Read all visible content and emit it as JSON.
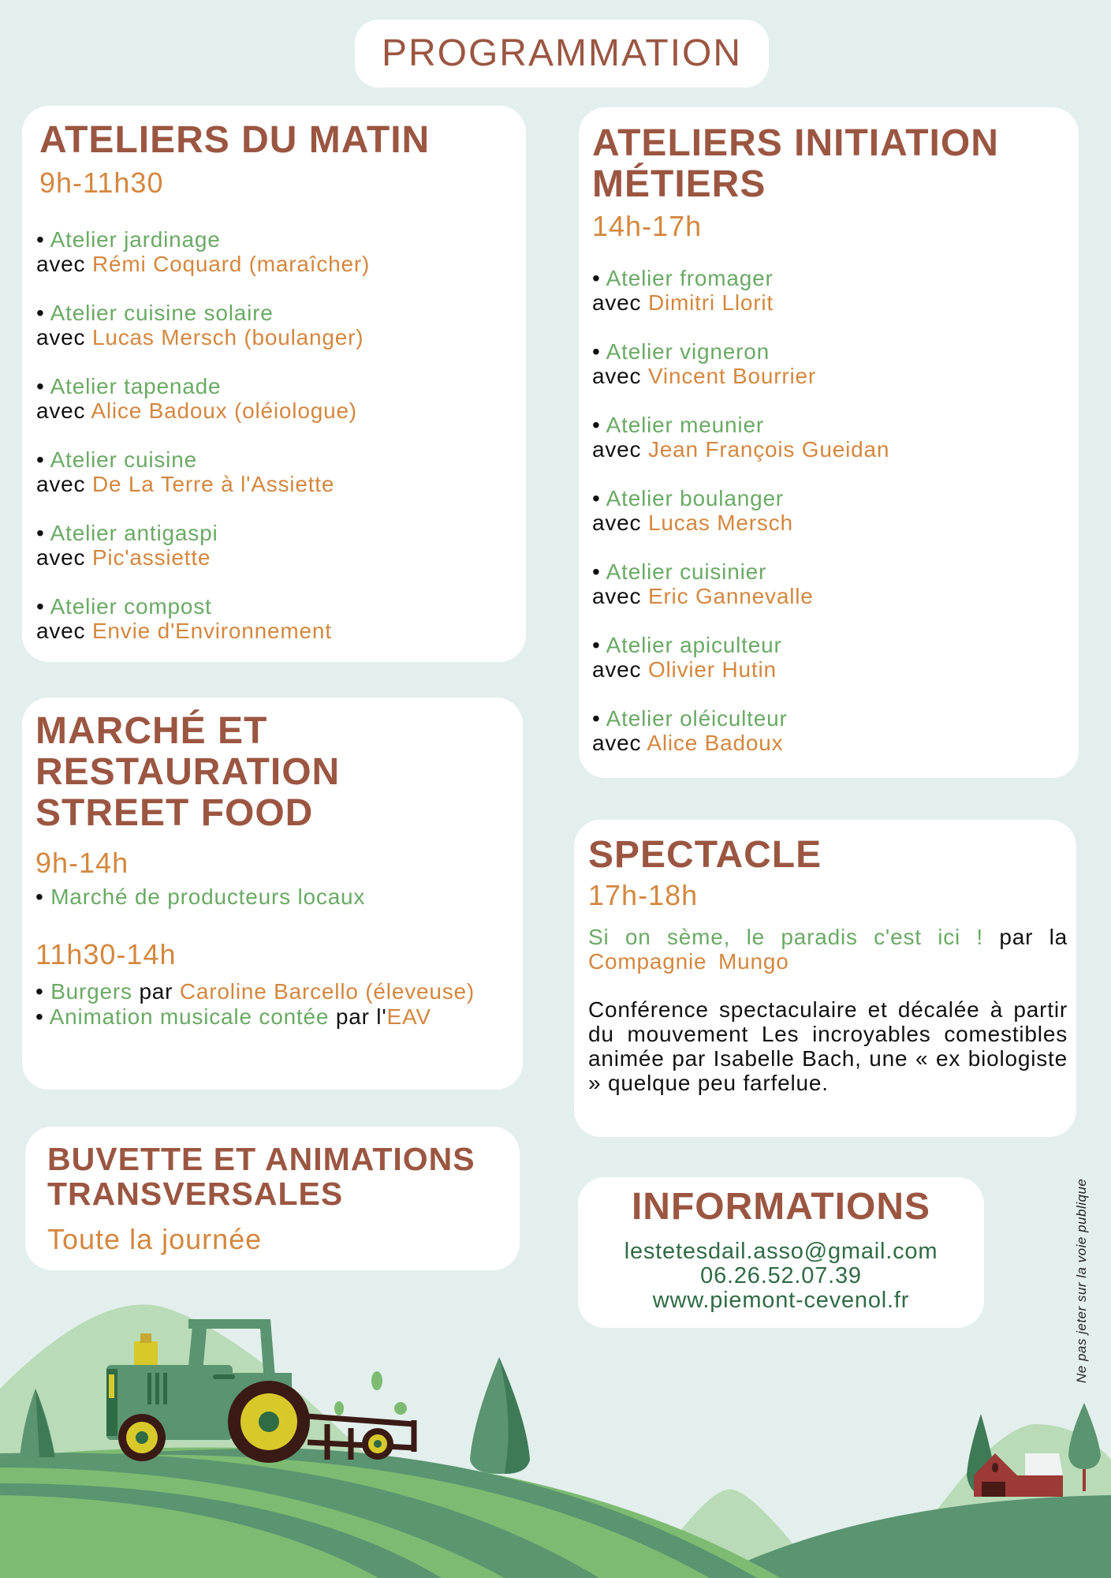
{
  "title": "PROGRAMMATION",
  "colors": {
    "background": "#e3efec",
    "heading": "#9b5641",
    "time": "#d4873e",
    "activity": "#6aaa64",
    "contact": "#2f6b45"
  },
  "ateliers_matin": {
    "heading": "ATELIERS DU MATIN",
    "time": "9h-11h30",
    "items": [
      {
        "activity": "Atelier jardinage",
        "with": "avec",
        "host": "Rémi Coquard (maraîcher)"
      },
      {
        "activity": "Atelier cuisine solaire",
        "with": "avec",
        "host": "Lucas Mersch (boulanger)"
      },
      {
        "activity": "Atelier tapenade",
        "with": "avec",
        "host": "Alice Badoux (oléiologue)"
      },
      {
        "activity": "Atelier cuisine",
        "with": "avec",
        "host": "De La Terre à l'Assiette"
      },
      {
        "activity": "Atelier antigaspi",
        "with": "avec",
        "host": "Pic'assiette"
      },
      {
        "activity": "Atelier compost",
        "with": "avec",
        "host": "Envie d'Environnement"
      }
    ]
  },
  "ateliers_initiation": {
    "heading_line1": "ATELIERS INITIATION",
    "heading_line2": "MÉTIERS",
    "time": "14h-17h",
    "items": [
      {
        "activity": "Atelier fromager",
        "with": "avec",
        "host": "Dimitri Llorit"
      },
      {
        "activity": "Atelier vigneron",
        "with": "avec",
        "host": "Vincent Bourrier"
      },
      {
        "activity": "Atelier meunier",
        "with": "avec",
        "host": "Jean François Gueidan"
      },
      {
        "activity": "Atelier boulanger",
        "with": "avec",
        "host": "Lucas Mersch"
      },
      {
        "activity": "Atelier cuisinier",
        "with": "avec",
        "host": "Eric Gannevalle"
      },
      {
        "activity": "Atelier apiculteur",
        "with": "avec",
        "host": "Olivier Hutin"
      },
      {
        "activity": "Atelier oléiculteur",
        "with": "avec",
        "host": "Alice Badoux"
      }
    ]
  },
  "marche": {
    "heading_lines": [
      "MARCHÉ ET",
      "RESTAURATION",
      "STREET FOOD"
    ],
    "time1": "9h-14h",
    "item1": "Marché de producteurs locaux",
    "time2": "11h30-14h",
    "burgers": "Burgers",
    "par": "par",
    "burgers_host": "Caroline Barcello (éleveuse)",
    "animation": "Animation musicale contée",
    "par_l": "par l'",
    "animation_host": "EAV"
  },
  "spectacle": {
    "heading": "SPECTACLE",
    "time": "17h-18h",
    "show_title": "Si on sème, le paradis c'est ici !",
    "par_la": "par la",
    "company": "Compagnie Mungo",
    "description": "Conférence spectaculaire et décalée à partir du mouvement Les incroyables comestibles animée par Isabelle Bach, une « ex biologiste » quelque peu farfelue."
  },
  "buvette": {
    "heading_line1": "BUVETTE ET ANIMATIONS",
    "heading_line2": "TRANSVERSALES",
    "time": "Toute la journée"
  },
  "informations": {
    "heading": "INFORMATIONS",
    "email": "lestetesdail.asso@gmail.com",
    "phone": "06.26.52.07.39",
    "website": "www.piemont-cevenol.fr"
  },
  "notice": "Ne pas jeter sur la voie publique"
}
